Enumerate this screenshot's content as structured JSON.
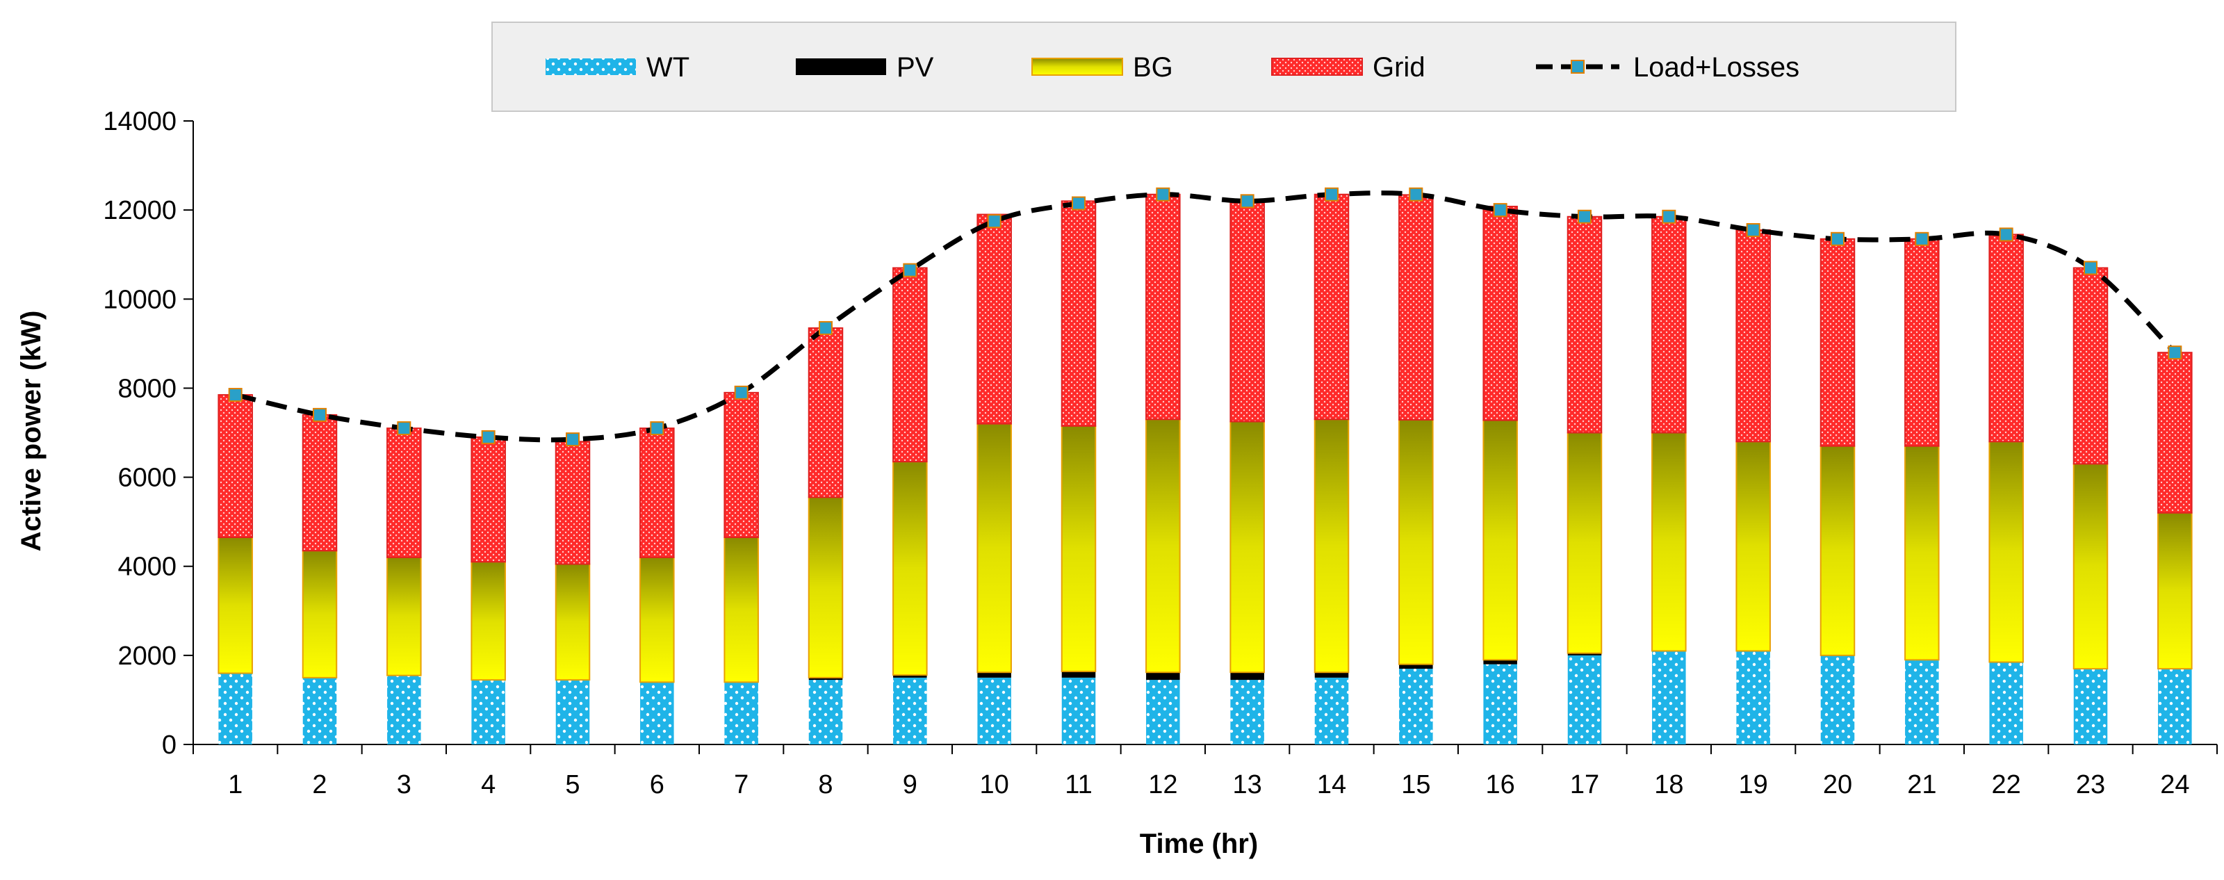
{
  "chart_data": {
    "type": "bar",
    "stacked": true,
    "title": "",
    "xlabel": "Time (hr)",
    "ylabel": "Active power (kW)",
    "ylim": [
      0,
      14000
    ],
    "yticks": [
      0,
      2000,
      4000,
      6000,
      8000,
      10000,
      12000,
      14000
    ],
    "categories": [
      "1",
      "2",
      "3",
      "4",
      "5",
      "6",
      "7",
      "8",
      "9",
      "10",
      "11",
      "12",
      "13",
      "14",
      "15",
      "16",
      "17",
      "18",
      "19",
      "20",
      "21",
      "22",
      "23",
      "24"
    ],
    "series": [
      {
        "name": "WT",
        "kind": "bar",
        "color": "#1fb4e8",
        "values": [
          1600,
          1500,
          1550,
          1450,
          1450,
          1400,
          1400,
          1450,
          1500,
          1500,
          1500,
          1450,
          1450,
          1500,
          1700,
          1800,
          2000,
          2100,
          2100,
          2000,
          1900,
          1850,
          1700,
          1700
        ]
      },
      {
        "name": "PV",
        "kind": "bar",
        "color": "#000000",
        "values": [
          0,
          0,
          0,
          0,
          0,
          0,
          0,
          50,
          60,
          120,
          140,
          170,
          170,
          120,
          100,
          100,
          50,
          0,
          0,
          0,
          0,
          0,
          0,
          0
        ]
      },
      {
        "name": "BG",
        "kind": "bar",
        "color": "#e8e800",
        "values": [
          3050,
          2850,
          2650,
          2650,
          2600,
          2800,
          3250,
          4050,
          4790,
          5580,
          5510,
          5680,
          5630,
          5680,
          5490,
          5380,
          4950,
          4900,
          4700,
          4700,
          4800,
          4950,
          4600,
          3500
        ]
      },
      {
        "name": "Grid",
        "kind": "bar",
        "color": "#ff3030",
        "values": [
          3200,
          3050,
          2900,
          2800,
          2750,
          2900,
          3250,
          3800,
          4350,
          4700,
          5050,
          5050,
          4950,
          5050,
          5050,
          4800,
          4850,
          4850,
          4750,
          4650,
          4650,
          4650,
          4400,
          3600
        ]
      },
      {
        "name": "Load+Losses",
        "kind": "line",
        "color": "#000000",
        "marker_color": "#2aa0c8",
        "values": [
          7850,
          7400,
          7100,
          6900,
          6850,
          7100,
          7900,
          9350,
          10650,
          11750,
          12150,
          12350,
          12200,
          12350,
          12350,
          12000,
          11850,
          11850,
          11550,
          11350,
          11350,
          11450,
          10700,
          8800
        ]
      }
    ],
    "legend": {
      "position": "top",
      "entries": [
        "WT",
        "PV",
        "BG",
        "Grid",
        "Load+Losses"
      ]
    }
  }
}
